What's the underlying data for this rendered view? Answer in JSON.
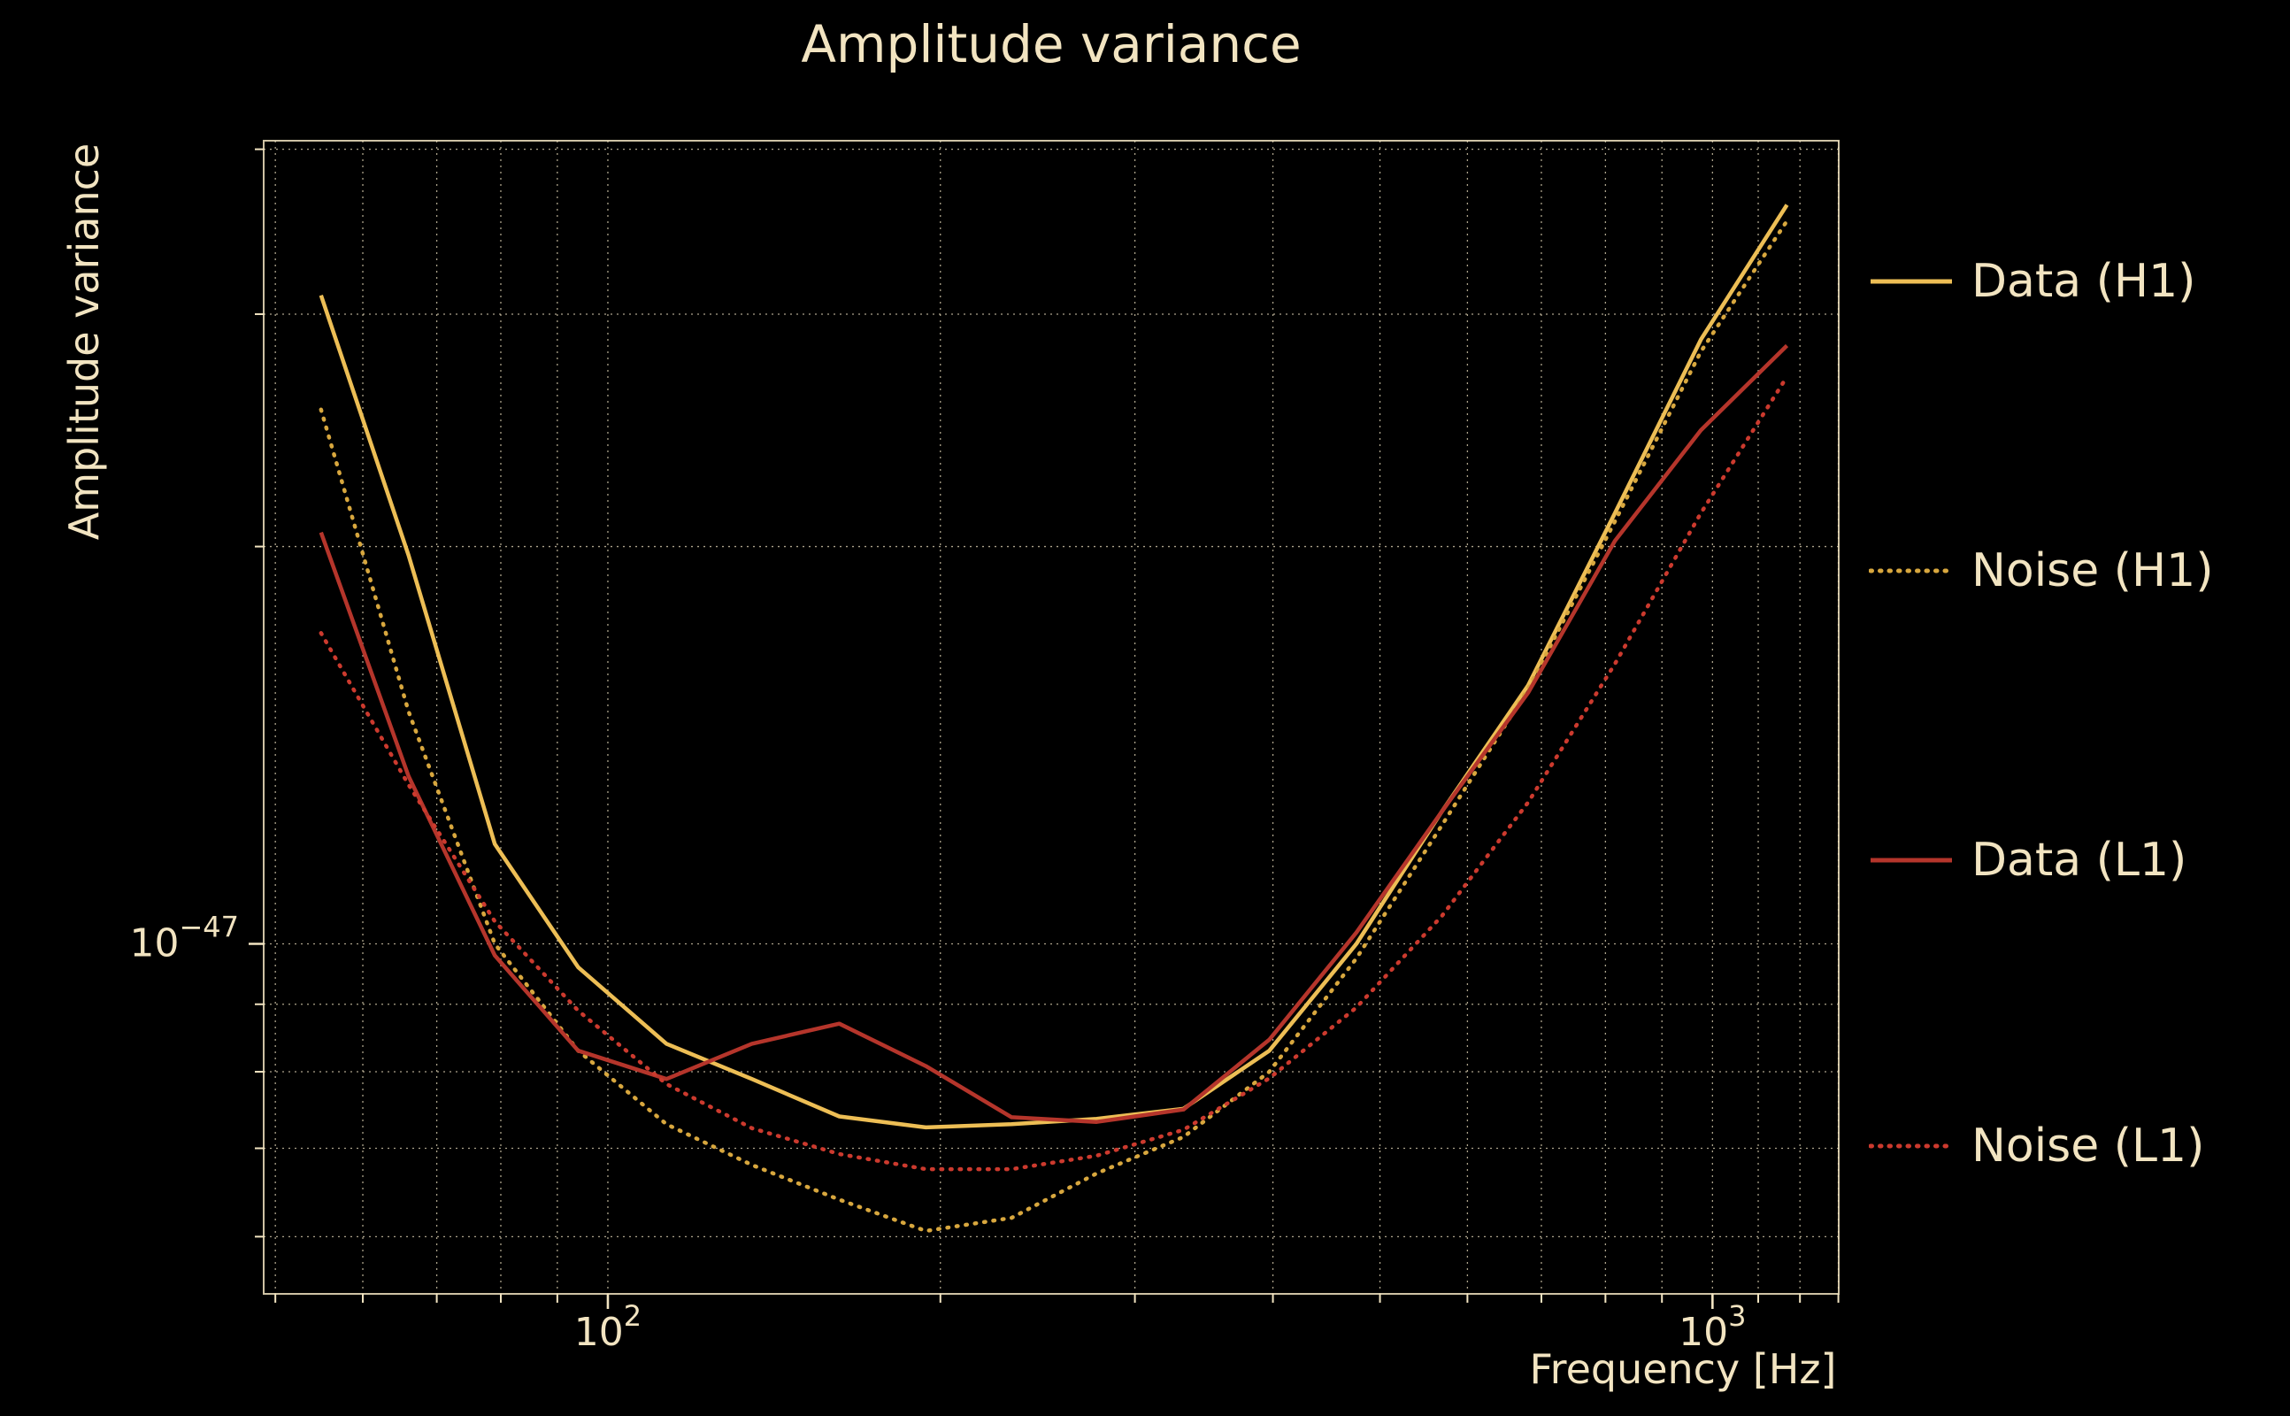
{
  "chart_data": {
    "type": "line",
    "title": "Amplitude variance",
    "xlabel": "Frequency [Hz]",
    "ylabel": "Amplitude variance",
    "x_scale": "log",
    "y_scale": "log",
    "x_range": [
      48.8,
      1301
    ],
    "y_range": [
      5.43e-48,
      4.06e-47
    ],
    "grid": true,
    "background_color": "#000000",
    "text_color": "#f2e4c1",
    "grid_color": "#f0e3c2",
    "legend_position": "right",
    "x_major_ticks": [
      {
        "value": 100,
        "base": "10",
        "exp": "2"
      },
      {
        "value": 1000,
        "base": "10",
        "exp": "3"
      }
    ],
    "x_minor_ticks": [
      50,
      60,
      70,
      80,
      90,
      200,
      300,
      400,
      500,
      600,
      700,
      800,
      900,
      1100,
      1200,
      1300
    ],
    "y_major_ticks": [
      {
        "value": 1e-47,
        "base": "10",
        "exp": "−47"
      }
    ],
    "y_minor_ticks": [
      6e-48,
      7e-48,
      8e-48,
      9e-48,
      2e-47,
      3e-47,
      4e-47
    ],
    "frequencies": [
      55,
      66,
      79,
      94,
      113,
      135,
      162,
      194,
      232,
      277,
      332,
      397,
      476,
      569,
      681,
      816,
      976,
      1168
    ],
    "series": [
      {
        "name": "Data (H1)",
        "color": "#edbe55",
        "style": "solid",
        "values": [
          3.1e-47,
          1.97e-47,
          1.19e-47,
          9.6e-48,
          8.4e-48,
          7.9e-48,
          7.4e-48,
          7.26e-48,
          7.3e-48,
          7.37e-48,
          7.5e-48,
          8.3e-48,
          1e-47,
          1.26e-47,
          1.57e-47,
          2.12e-47,
          2.87e-47,
          3.63e-47
        ]
      },
      {
        "name": "Noise (H1)",
        "color": "#d8a73e",
        "style": "dotted",
        "values": [
          2.54e-47,
          1.5e-47,
          1e-47,
          8.3e-48,
          7.3e-48,
          6.8e-48,
          6.4e-48,
          6.06e-48,
          6.2e-48,
          6.7e-48,
          7.14e-48,
          8e-48,
          9.75e-48,
          1.23e-47,
          1.56e-47,
          2.09e-47,
          2.81e-47,
          3.53e-47
        ]
      },
      {
        "name": "Data (L1)",
        "color": "#b5352b",
        "style": "solid",
        "values": [
          2.05e-47,
          1.34e-47,
          9.8e-48,
          8.3e-48,
          7.9e-48,
          8.4e-48,
          8.7e-48,
          8.08e-48,
          7.39e-48,
          7.33e-48,
          7.49e-48,
          8.46e-48,
          1.02e-47,
          1.26e-47,
          1.55e-47,
          2.02e-47,
          2.45e-47,
          2.84e-47
        ]
      },
      {
        "name": "Noise (L1)",
        "color": "#cc3a2e",
        "style": "dotted",
        "values": [
          1.72e-47,
          1.32e-47,
          1.04e-47,
          8.9e-48,
          7.83e-48,
          7.25e-48,
          6.93e-48,
          6.75e-48,
          6.75e-48,
          6.91e-48,
          7.23e-48,
          7.91e-48,
          8.95e-48,
          1.05e-47,
          1.28e-47,
          1.63e-47,
          2.12e-47,
          2.69e-47
        ]
      }
    ]
  }
}
